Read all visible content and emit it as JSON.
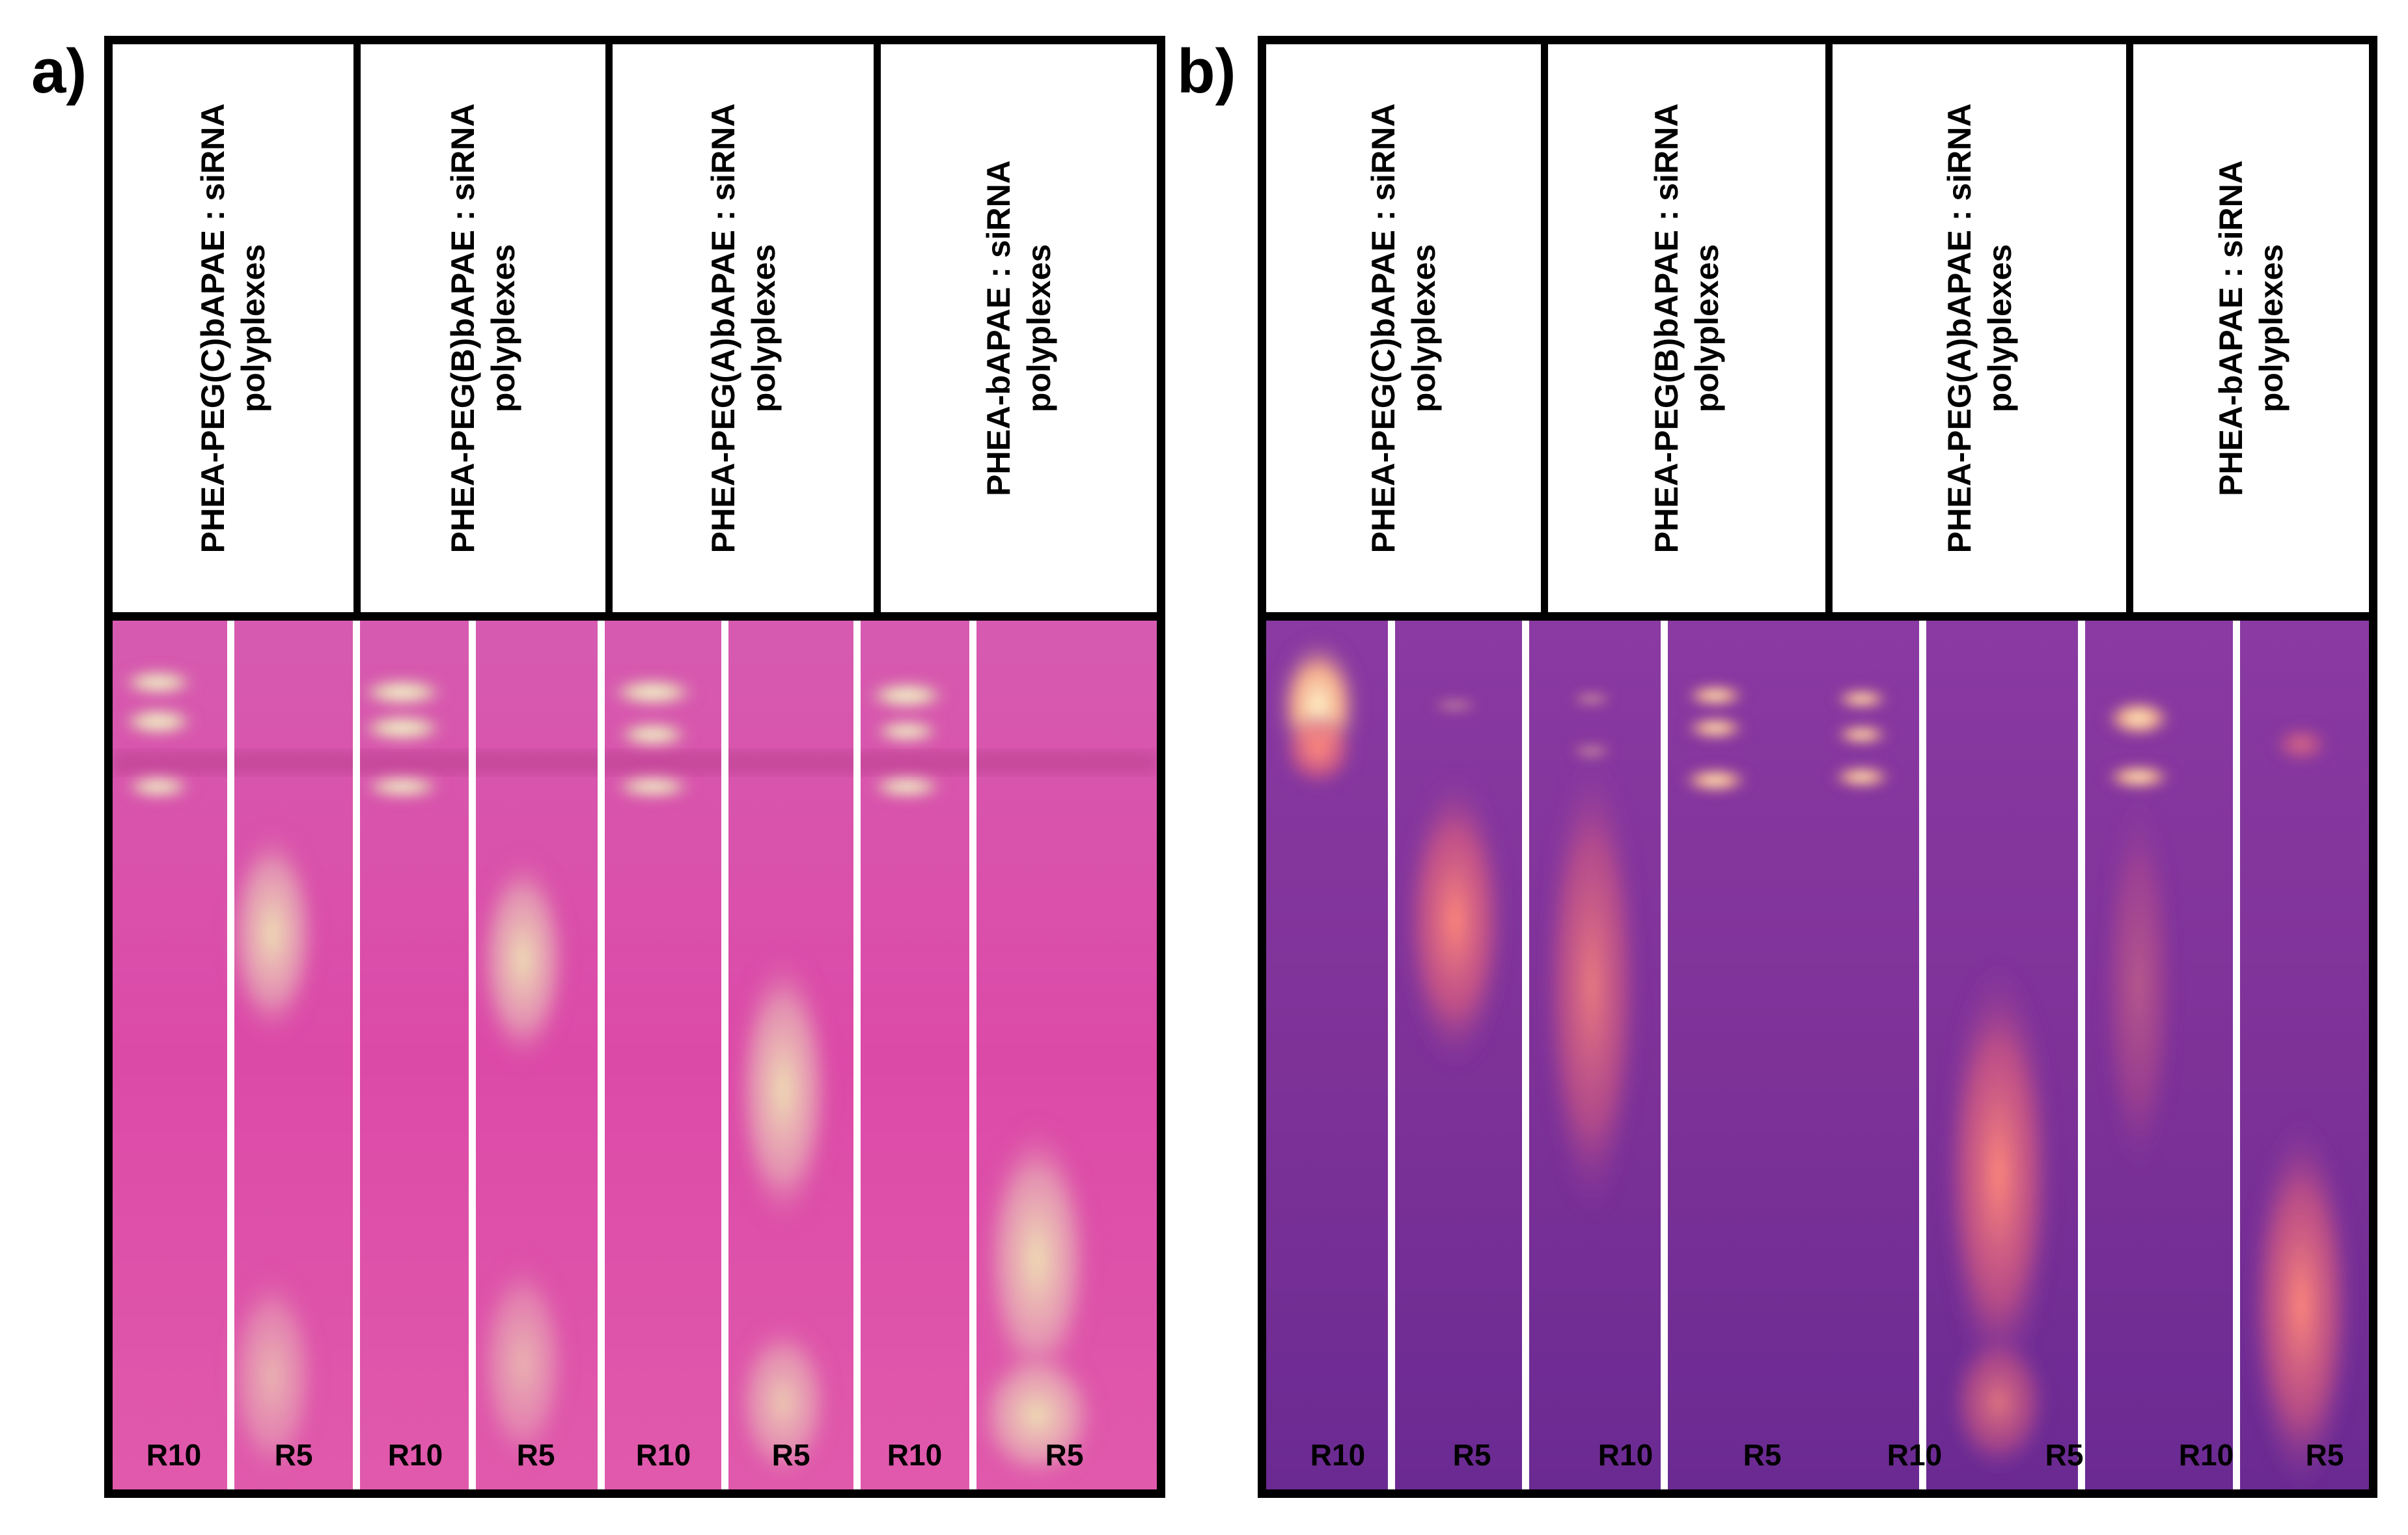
{
  "panels": [
    {
      "letter": "a)",
      "theme": "brightfield",
      "gel_colors": {
        "background": "#d24aa6",
        "band": "#eeeac0",
        "smear": "#e8e2b2"
      },
      "headers": [
        {
          "line1": "PHEA-PEG(C)bAPAE : siRNA",
          "line2": "polyplexes"
        },
        {
          "line1": "PHEA-PEG(B)bAPAE : siRNA",
          "line2": "polyplexes"
        },
        {
          "line1": "PHEA-PEG(A)bAPAE : siRNA",
          "line2": "polyplexes"
        },
        {
          "line1": "PHEA-bAPAE : siRNA",
          "line2": "polyplexes"
        }
      ],
      "lanes": [
        "R10",
        "R5",
        "R10",
        "R5",
        "R10",
        "R5",
        "R10",
        "R5"
      ]
    },
    {
      "letter": "b)",
      "theme": "fluorescence",
      "gel_colors": {
        "background": "#7a2f9a",
        "band": "#ffe9b8",
        "smear": "#ff7f7a"
      },
      "headers": [
        {
          "line1": "PHEA-PEG(C)bAPAE : siRNA",
          "line2": "polyplexes"
        },
        {
          "line1": "PHEA-PEG(B)bAPAE : siRNA",
          "line2": "polyplexes"
        },
        {
          "line1": "PHEA-PEG(A)bAPAE : siRNA",
          "line2": "polyplexes"
        },
        {
          "line1": "PHEA-bAPAE : siRNA",
          "line2": "polyplexes"
        }
      ],
      "lanes": [
        "R10",
        "R5",
        "R10",
        "R5",
        "R10",
        "R5",
        "R10",
        "R5"
      ]
    }
  ]
}
